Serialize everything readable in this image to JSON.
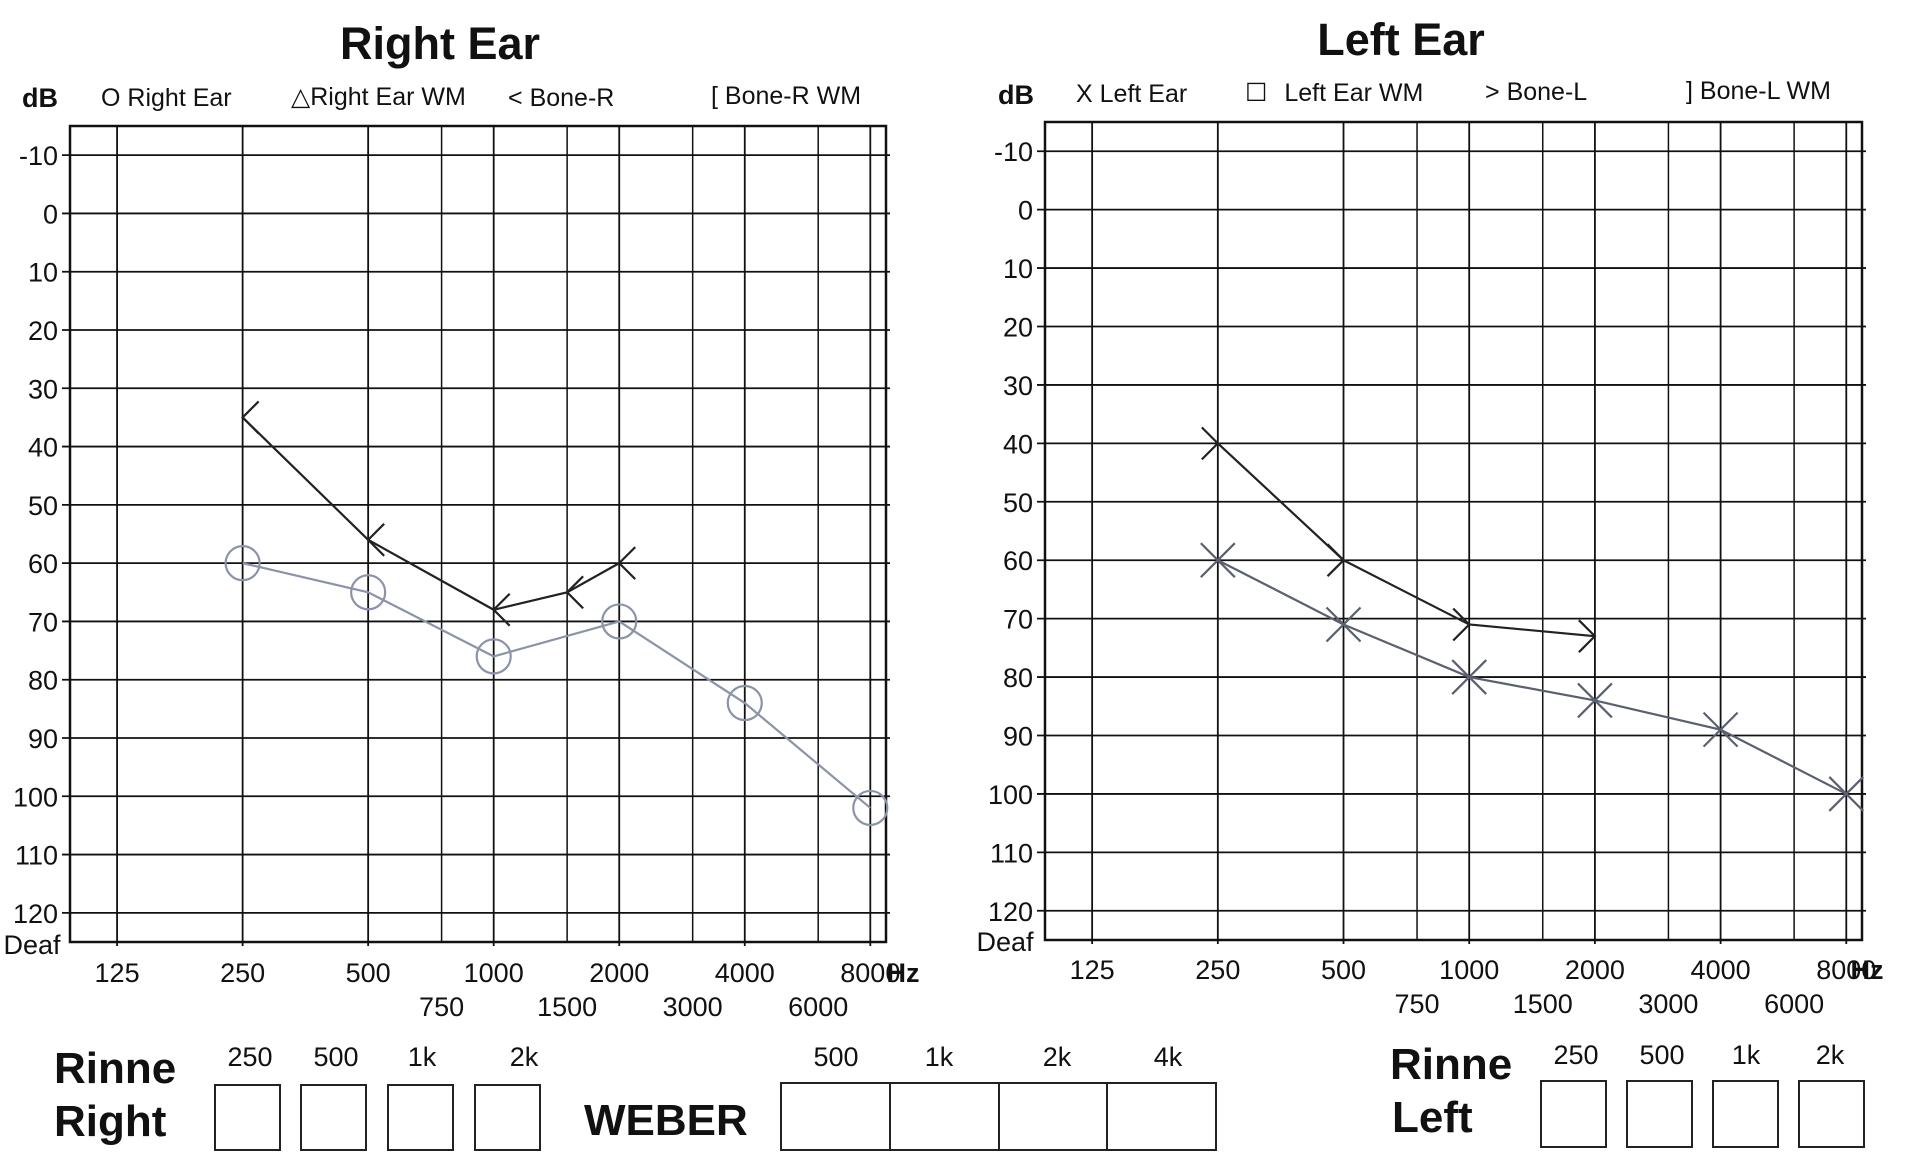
{
  "chart_data": [
    {
      "type": "line",
      "title": "Right Ear",
      "ylabel": "dB",
      "ylabel_bottom": "Deaf",
      "xunit": "Hz",
      "ylim": [
        -10,
        120
      ],
      "yticks": [
        "-10",
        "0",
        "10",
        "20",
        "30",
        "40",
        "50",
        "60",
        "70",
        "80",
        "90",
        "100",
        "110",
        "120"
      ],
      "x_major": [
        "125",
        "250",
        "500",
        "1000",
        "2000",
        "4000",
        "8000"
      ],
      "x_minor": [
        "750",
        "1500",
        "3000",
        "6000"
      ],
      "legend": [
        {
          "symbol": "O",
          "label": "Right Ear"
        },
        {
          "symbol": "△",
          "label": "Right Ear WM"
        },
        {
          "symbol": "<",
          "label": "Bone-R"
        },
        {
          "symbol": "[",
          "label": "Bone-R WM"
        }
      ],
      "series": [
        {
          "name": "Right Ear",
          "marker": "circle",
          "color": "#8a93a8",
          "x": [
            250,
            500,
            1000,
            2000,
            4000,
            8000
          ],
          "y": [
            60,
            65,
            76,
            70,
            84,
            102
          ]
        },
        {
          "name": "Bone-R",
          "marker": "less-than",
          "color": "#222222",
          "x": [
            250,
            500,
            1000,
            1500,
            2000
          ],
          "y": [
            35,
            56,
            68,
            65,
            60
          ]
        }
      ]
    },
    {
      "type": "line",
      "title": "Left Ear",
      "ylabel": "dB",
      "ylabel_bottom": "Deaf",
      "xunit": "Hz",
      "ylim": [
        -10,
        120
      ],
      "yticks": [
        "-10",
        "0",
        "10",
        "20",
        "30",
        "40",
        "50",
        "60",
        "70",
        "80",
        "90",
        "100",
        "110",
        "120"
      ],
      "x_major": [
        "125",
        "250",
        "500",
        "1000",
        "2000",
        "4000",
        "8000"
      ],
      "x_minor": [
        "750",
        "1500",
        "3000",
        "6000"
      ],
      "legend": [
        {
          "symbol": "X",
          "label": "Left Ear"
        },
        {
          "symbol": "☐",
          "label": "Left Ear WM"
        },
        {
          "symbol": ">",
          "label": "Bone-L"
        },
        {
          "symbol": "]",
          "label": "Bone-L WM"
        }
      ],
      "series": [
        {
          "name": "Left Ear",
          "marker": "x",
          "color": "#5a6070",
          "x": [
            250,
            500,
            1000,
            2000,
            4000,
            8000
          ],
          "y": [
            60,
            71,
            80,
            84,
            89,
            100
          ]
        },
        {
          "name": "Bone-L",
          "marker": "greater-than",
          "color": "#222222",
          "x": [
            250,
            500,
            1000,
            2000
          ],
          "y": [
            40,
            60,
            71,
            73
          ]
        }
      ]
    }
  ],
  "rinne_right": {
    "title_line1": "Rinne",
    "title_line2": "Right",
    "freqs": [
      "250",
      "500",
      "1k",
      "2k"
    ]
  },
  "weber": {
    "title": "WEBER",
    "freqs": [
      "500",
      "1k",
      "2k",
      "4k"
    ]
  },
  "rinne_left": {
    "title_line1": "Rinne",
    "title_line2": "Left",
    "freqs": [
      "250",
      "500",
      "1k",
      "2k"
    ]
  }
}
